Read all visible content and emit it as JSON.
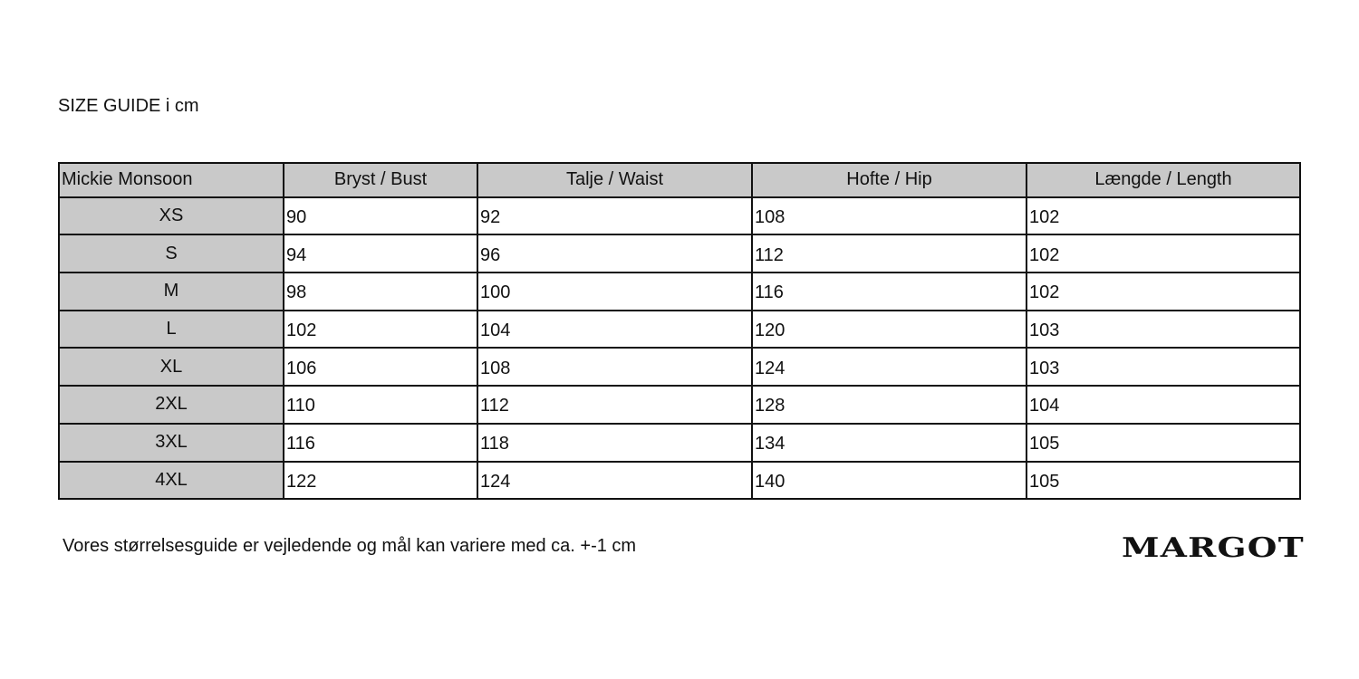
{
  "title": "SIZE GUIDE i cm",
  "table": {
    "headers": [
      "Mickie Monsoon",
      "Bryst / Bust",
      "Talje / Waist",
      "Hofte / Hip",
      "Længde / Length"
    ],
    "rows": [
      [
        "XS",
        "90",
        "92",
        "108",
        "102"
      ],
      [
        "S",
        "94",
        "96",
        "112",
        "102"
      ],
      [
        "M",
        "98",
        "100",
        "116",
        "102"
      ],
      [
        "L",
        "102",
        "104",
        "120",
        "103"
      ],
      [
        "XL",
        "106",
        "108",
        "124",
        "103"
      ],
      [
        "2XL",
        "110",
        "112",
        "128",
        "104"
      ],
      [
        "3XL",
        "116",
        "118",
        "134",
        "105"
      ],
      [
        "4XL",
        "122",
        "124",
        "140",
        "105"
      ]
    ]
  },
  "note": "Vores størrelsesguide er vejledende og mål kan variere med ca. +-1 cm",
  "logo": "MARGOT"
}
